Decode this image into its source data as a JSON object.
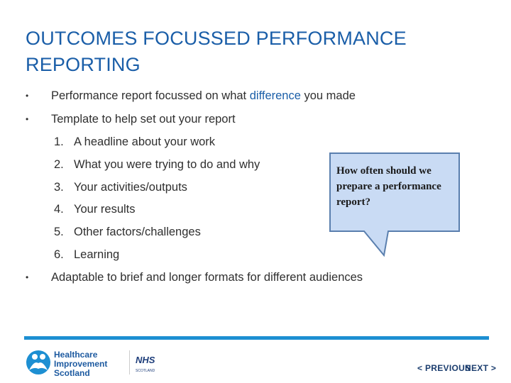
{
  "slide": {
    "title": "OUTCOMES FOCUSSED PERFORMANCE REPORTING",
    "bullet1": {
      "marker": "•",
      "before": "Performance report focussed on what ",
      "highlight": "difference",
      "after": " you made"
    },
    "bullet2": {
      "marker": "•",
      "text": "Template to help set out your report"
    },
    "numbered_items": [
      {
        "number": "1.",
        "text": "A headline about your work"
      },
      {
        "number": "2.",
        "text": "What you were trying to do and why"
      },
      {
        "number": "3.",
        "text": "Your activities/outputs"
      },
      {
        "number": "4.",
        "text": "Your results"
      },
      {
        "number": "5.",
        "text": "Other factors/challenges"
      },
      {
        "number": "6.",
        "text": "Learning"
      }
    ],
    "bullet3": {
      "marker": "•",
      "text": "Adaptable to brief and longer formats for different audiences"
    },
    "callout": {
      "text": "How often should we prepare a performance report?"
    }
  },
  "footer": {
    "logo_text": [
      "Healthcare",
      "Improvement",
      "Scotland"
    ],
    "nhs_text": "NHS",
    "nhs_sub": "SCOTLAND",
    "previous_label": "< PREVIOUS",
    "next_label": "NEXT >"
  },
  "colors": {
    "title": "#1a5ea8",
    "accent_bar": "#1d8fd2",
    "callout_fill": "#c9dbf4",
    "callout_border": "#5a7fae",
    "nav": "#1b3d6e"
  }
}
